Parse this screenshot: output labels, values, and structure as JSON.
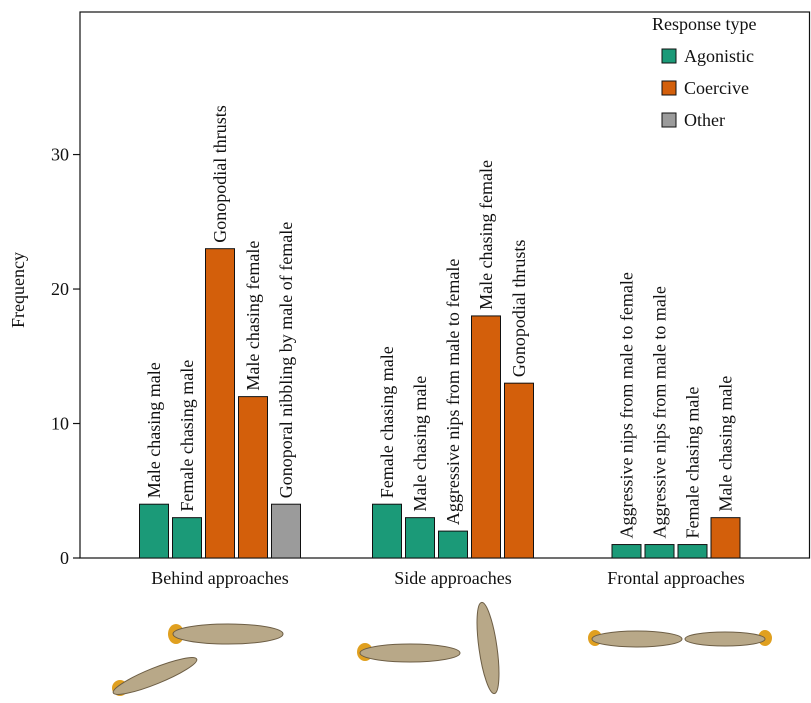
{
  "chart_data": {
    "type": "grouped_bar",
    "ylabel": "Frequency",
    "ylim": [
      0,
      40.6
    ],
    "yticks": [
      0,
      10,
      20,
      30
    ],
    "legend_title": "Response type",
    "series": [
      {
        "name": "Agonistic",
        "color": "#1b9a78"
      },
      {
        "name": "Coercive",
        "color": "#d35f0b"
      },
      {
        "name": "Other",
        "color": "#9b9b9b"
      }
    ],
    "groups": [
      {
        "name": "Behind approaches",
        "bars": [
          {
            "label": "Male chasing male",
            "value": 4,
            "series": 0
          },
          {
            "label": "Female chasing male",
            "value": 3,
            "series": 0
          },
          {
            "label": "Gonopodial thrusts",
            "value": 23,
            "series": 1
          },
          {
            "label": "Male chasing female",
            "value": 12,
            "series": 1
          },
          {
            "label": "Gonoporal nibbling by male of female",
            "value": 4,
            "series": 2
          }
        ]
      },
      {
        "name": "Side approaches",
        "bars": [
          {
            "label": "Female chasing male",
            "value": 4,
            "series": 0
          },
          {
            "label": "Male chasing male",
            "value": 3,
            "series": 0
          },
          {
            "label": "Aggressive nips from male to female",
            "value": 2,
            "series": 0
          },
          {
            "label": "Male chasing female",
            "value": 18,
            "series": 1
          },
          {
            "label": "Gonopodial thrusts",
            "value": 13,
            "series": 1
          }
        ]
      },
      {
        "name": "Frontal approaches",
        "bars": [
          {
            "label": "Aggressive nips from male to female",
            "value": 1,
            "series": 0
          },
          {
            "label": "Aggressive nips from male to male",
            "value": 1,
            "series": 0
          },
          {
            "label": "Female chasing male",
            "value": 1,
            "series": 0
          },
          {
            "label": "Male chasing male",
            "value": 3,
            "series": 1
          }
        ]
      }
    ]
  }
}
